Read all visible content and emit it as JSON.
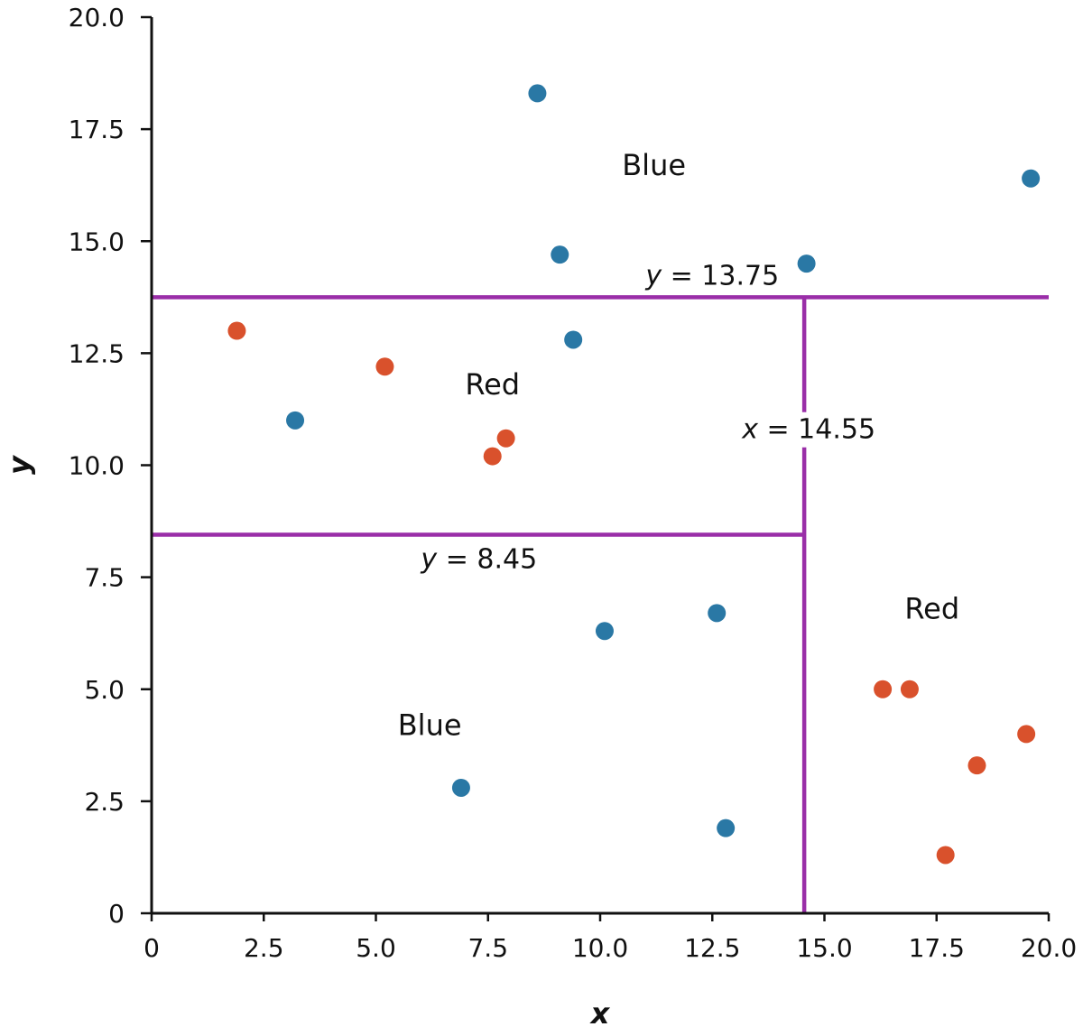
{
  "chart_data": {
    "type": "scatter",
    "title": "",
    "xlabel": "x",
    "ylabel": "y",
    "xlim": [
      0,
      20
    ],
    "ylim": [
      0,
      20
    ],
    "x_ticks": [
      0,
      2.5,
      5,
      7.5,
      10,
      12.5,
      15,
      17.5,
      20
    ],
    "y_ticks": [
      0,
      2.5,
      5,
      7.5,
      10,
      12.5,
      15,
      17.5,
      20
    ],
    "x_tick_labels": [
      "0",
      "2.5",
      "5.0",
      "7.5",
      "10.0",
      "12.5",
      "15.0",
      "17.5",
      "20.0"
    ],
    "y_tick_labels": [
      "0",
      "2.5",
      "5.0",
      "7.5",
      "10.0",
      "12.5",
      "15.0",
      "17.5",
      "20.0"
    ],
    "grid": false,
    "colors": {
      "blue": "#2a78a5",
      "red": "#d9512c",
      "split": "#9a2ea8",
      "axis": "#111111"
    },
    "series": [
      {
        "color": "blue",
        "points": [
          [
            8.6,
            18.3
          ],
          [
            19.6,
            16.4
          ],
          [
            9.1,
            14.7
          ],
          [
            14.6,
            14.5
          ],
          [
            9.4,
            12.8
          ],
          [
            3.2,
            11.0
          ],
          [
            10.1,
            6.3
          ],
          [
            12.6,
            6.7
          ],
          [
            6.9,
            2.8
          ],
          [
            12.8,
            1.9
          ]
        ]
      },
      {
        "color": "red",
        "points": [
          [
            1.9,
            13.0
          ],
          [
            5.2,
            12.2
          ],
          [
            7.9,
            10.6
          ],
          [
            7.6,
            10.2
          ],
          [
            16.3,
            5.0
          ],
          [
            16.9,
            5.0
          ],
          [
            19.5,
            4.0
          ],
          [
            18.4,
            3.3
          ],
          [
            17.7,
            1.3
          ]
        ]
      }
    ],
    "splits": [
      {
        "orientation": "horizontal",
        "value": 13.75,
        "from": 0,
        "to": 20,
        "var": "y",
        "text": " = 13.75"
      },
      {
        "orientation": "vertical",
        "value": 14.55,
        "from": 0,
        "to": 13.75,
        "var": "x",
        "text": " = 14.55"
      },
      {
        "orientation": "horizontal",
        "value": 8.45,
        "from": 0,
        "to": 14.55,
        "var": "y",
        "text": " = 8.45"
      }
    ],
    "regions": [
      {
        "label": "Blue",
        "x": 11.2,
        "y": 16.7
      },
      {
        "label": "Red",
        "x": 7.6,
        "y": 11.8
      },
      {
        "label": "Blue",
        "x": 6.2,
        "y": 4.2
      },
      {
        "label": "Red",
        "x": 17.4,
        "y": 6.8
      }
    ]
  }
}
